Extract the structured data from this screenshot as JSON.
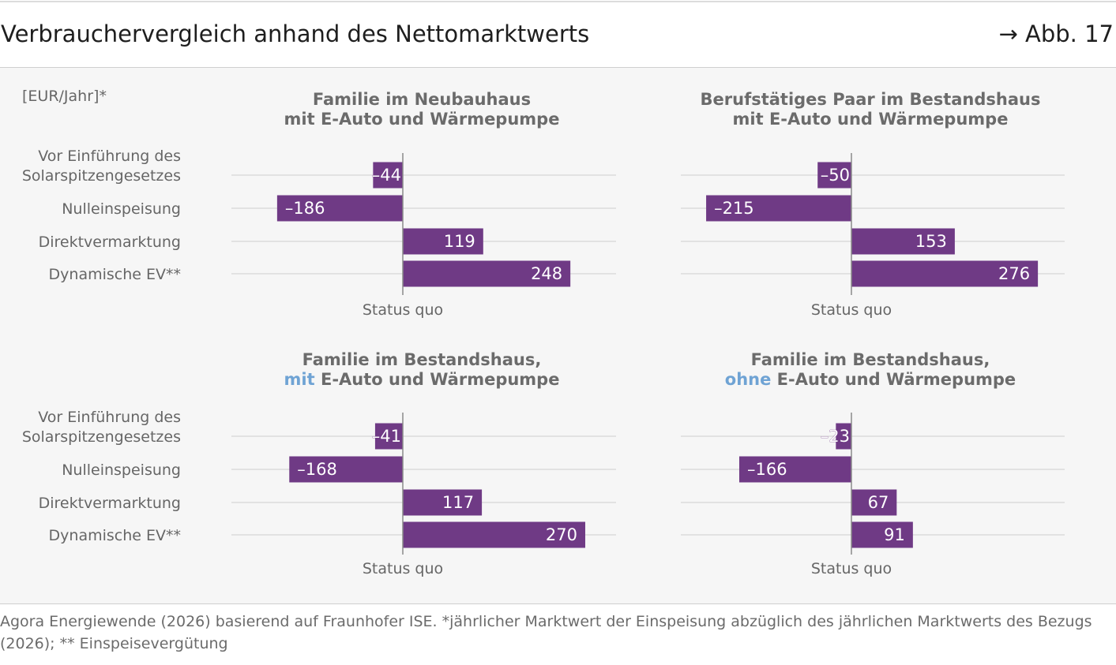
{
  "header": {
    "title": "Verbrauchervergleich anhand des Nettomarktwerts",
    "figure_ref": "→ Abb. 17"
  },
  "footer": {
    "source": "Agora Energiewende (2026) basierend auf Fraunhofer ISE. *jährlicher Marktwert der Einspeisung abzüglich des jährlichen Marktwerts des Bezugs (2026); ** Einspeisevergütung"
  },
  "colors": {
    "bar": "#6f3a85",
    "highlight": "#6fa3d4",
    "title": "#6b6b6b",
    "label": "#666666"
  },
  "chart_data": [
    {
      "type": "bar",
      "orientation": "horizontal",
      "unit_label": "[EUR/Jahr]*",
      "title_lines": [
        [
          {
            "text": "Familie im Neubauhaus"
          }
        ],
        [
          {
            "text": "mit E-Auto und Wärmepumpe"
          }
        ]
      ],
      "categories": [
        "Vor Einführung des Solarspitzengesetzes",
        "Nulleinspeisung",
        "Direktvermarktung",
        "Dynamische EV**"
      ],
      "category_lines": [
        [
          "Vor Einführung des",
          "Solarspitzengesetzes"
        ],
        [
          "Nulleinspeisung"
        ],
        [
          "Direktvermarktung"
        ],
        [
          "Dynamische EV**"
        ]
      ],
      "values": [
        -44,
        -186,
        119,
        248
      ],
      "value_labels": [
        "–44",
        "–186",
        "119",
        "248"
      ],
      "baseline_label": "Status quo",
      "xlim": [
        -250,
        300
      ]
    },
    {
      "type": "bar",
      "orientation": "horizontal",
      "unit_label": "",
      "title_lines": [
        [
          {
            "text": "Berufstätiges Paar im Bestandshaus"
          }
        ],
        [
          {
            "text": "mit E-Auto und Wärmepumpe"
          }
        ]
      ],
      "categories": [
        "Vor Einführung des Solarspitzengesetzes",
        "Nulleinspeisung",
        "Direktvermarktung",
        "Dynamische EV**"
      ],
      "category_lines": [],
      "values": [
        -50,
        -215,
        153,
        276
      ],
      "value_labels": [
        "–50",
        "–215",
        "153",
        "276"
      ],
      "baseline_label": "Status quo",
      "xlim": [
        -250,
        300
      ]
    },
    {
      "type": "bar",
      "orientation": "horizontal",
      "unit_label": "",
      "title_lines": [
        [
          {
            "text": "Familie im Bestandshaus,"
          }
        ],
        [
          {
            "text": "mit",
            "highlight": true
          },
          {
            "text": " E-Auto und Wärmepumpe"
          }
        ]
      ],
      "categories": [
        "Vor Einführung des Solarspitzengesetzes",
        "Nulleinspeisung",
        "Direktvermarktung",
        "Dynamische EV**"
      ],
      "category_lines": [
        [
          "Vor Einführung des",
          "Solarspitzengesetzes"
        ],
        [
          "Nulleinspeisung"
        ],
        [
          "Direktvermarktung"
        ],
        [
          "Dynamische EV**"
        ]
      ],
      "values": [
        -41,
        -168,
        117,
        270
      ],
      "value_labels": [
        "–41",
        "–168",
        "117",
        "270"
      ],
      "baseline_label": "Status quo",
      "xlim": [
        -250,
        300
      ]
    },
    {
      "type": "bar",
      "orientation": "horizontal",
      "unit_label": "",
      "title_lines": [
        [
          {
            "text": "Familie im Bestandshaus,"
          }
        ],
        [
          {
            "text": "ohne",
            "highlight": true
          },
          {
            "text": " E-Auto und Wärmepumpe"
          }
        ]
      ],
      "categories": [
        "Vor Einführung des Solarspitzengesetzes",
        "Nulleinspeisung",
        "Direktvermarktung",
        "Dynamische EV**"
      ],
      "category_lines": [],
      "values": [
        -23,
        -166,
        67,
        91
      ],
      "value_labels": [
        "–23",
        "–166",
        "67",
        "91"
      ],
      "baseline_label": "Status quo",
      "xlim": [
        -250,
        300
      ]
    }
  ]
}
